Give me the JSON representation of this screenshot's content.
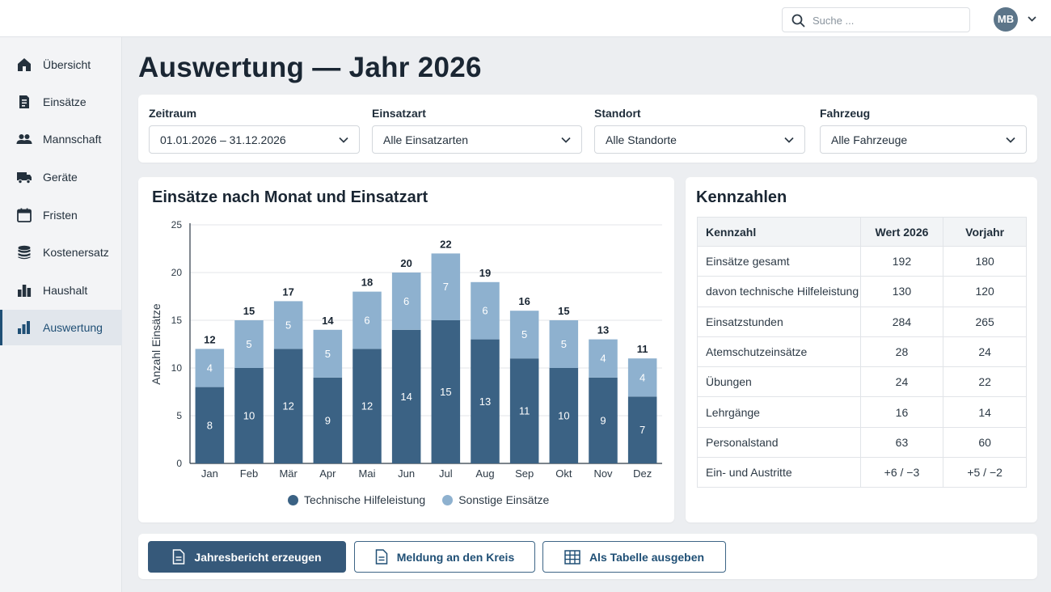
{
  "header": {
    "search_placeholder": "Suche ...",
    "user_initials": "MB"
  },
  "sidebar": {
    "items": [
      {
        "label": "Übersicht",
        "icon": "home-icon"
      },
      {
        "label": "Einsätze",
        "icon": "document-icon"
      },
      {
        "label": "Mannschaft",
        "icon": "people-icon"
      },
      {
        "label": "Geräte",
        "icon": "truck-icon"
      },
      {
        "label": "Fristen",
        "icon": "calendar-icon"
      },
      {
        "label": "Kostenersatz",
        "icon": "coins-icon"
      },
      {
        "label": "Haushalt",
        "icon": "bar-chart-icon"
      },
      {
        "label": "Auswertung",
        "icon": "bar-chart-icon",
        "active": true
      }
    ]
  },
  "page": {
    "title": "Auswertung — Jahr 2026"
  },
  "filters": {
    "zeitraum": {
      "label": "Zeitraum",
      "value": "01.01.2026 – 31.12.2026"
    },
    "einsatzart": {
      "label": "Einsatzart",
      "value": "Alle Einsatzarten"
    },
    "standort": {
      "label": "Standort",
      "value": "Alle Standorte"
    },
    "fahrzeug": {
      "label": "Fahrzeug",
      "value": "Alle Fahrzeuge"
    }
  },
  "chart_data": {
    "type": "bar",
    "stacked": true,
    "title": "Einsätze nach Monat und Einsatzart",
    "xlabel": "",
    "ylabel": "Anzahl Einsätze",
    "ylim": [
      0,
      25
    ],
    "yticks": [
      "0",
      "5",
      "10",
      "15",
      "20",
      "25"
    ],
    "grid": true,
    "legend": "bottom",
    "categories": [
      "Jan",
      "Feb",
      "Mär",
      "Apr",
      "Mai",
      "Jun",
      "Jul",
      "Aug",
      "Sep",
      "Okt",
      "Nov",
      "Dez"
    ],
    "series": [
      {
        "name": "Technische Hilfeleistung",
        "color": "#3b6284",
        "values": [
          8,
          10,
          12,
          9,
          12,
          14,
          15,
          13,
          11,
          10,
          9,
          7
        ]
      },
      {
        "name": "Sonstige Einsätze",
        "color": "#8eb1cf",
        "values": [
          4,
          5,
          5,
          5,
          6,
          6,
          7,
          6,
          5,
          5,
          4,
          4
        ]
      }
    ],
    "totals": [
      12,
      15,
      17,
      14,
      18,
      20,
      22,
      19,
      16,
      15,
      13,
      11
    ]
  },
  "kpi": {
    "title": "Kennzahlen",
    "columns": [
      "Kennzahl",
      "Wert 2026",
      "Vorjahr"
    ],
    "rows": [
      [
        "Einsätze gesamt",
        "192",
        "180"
      ],
      [
        "davon technische Hilfeleistung",
        "130",
        "120"
      ],
      [
        "Einsatzstunden",
        "284",
        "265"
      ],
      [
        "Atemschutzeinsätze",
        "28",
        "24"
      ],
      [
        "Übungen",
        "24",
        "22"
      ],
      [
        "Lehrgänge",
        "16",
        "14"
      ],
      [
        "Personalstand",
        "63",
        "60"
      ],
      [
        "Ein- und Austritte",
        "+6 / −3",
        "+5 / −2"
      ]
    ]
  },
  "actions": {
    "report": "Jahresbericht erzeugen",
    "report_icon": "document-icon",
    "meldung": "Meldung an den Kreis",
    "meldung_icon": "document-icon",
    "tabelle": "Als Tabelle ausgeben",
    "tabelle_icon": "table-icon"
  }
}
